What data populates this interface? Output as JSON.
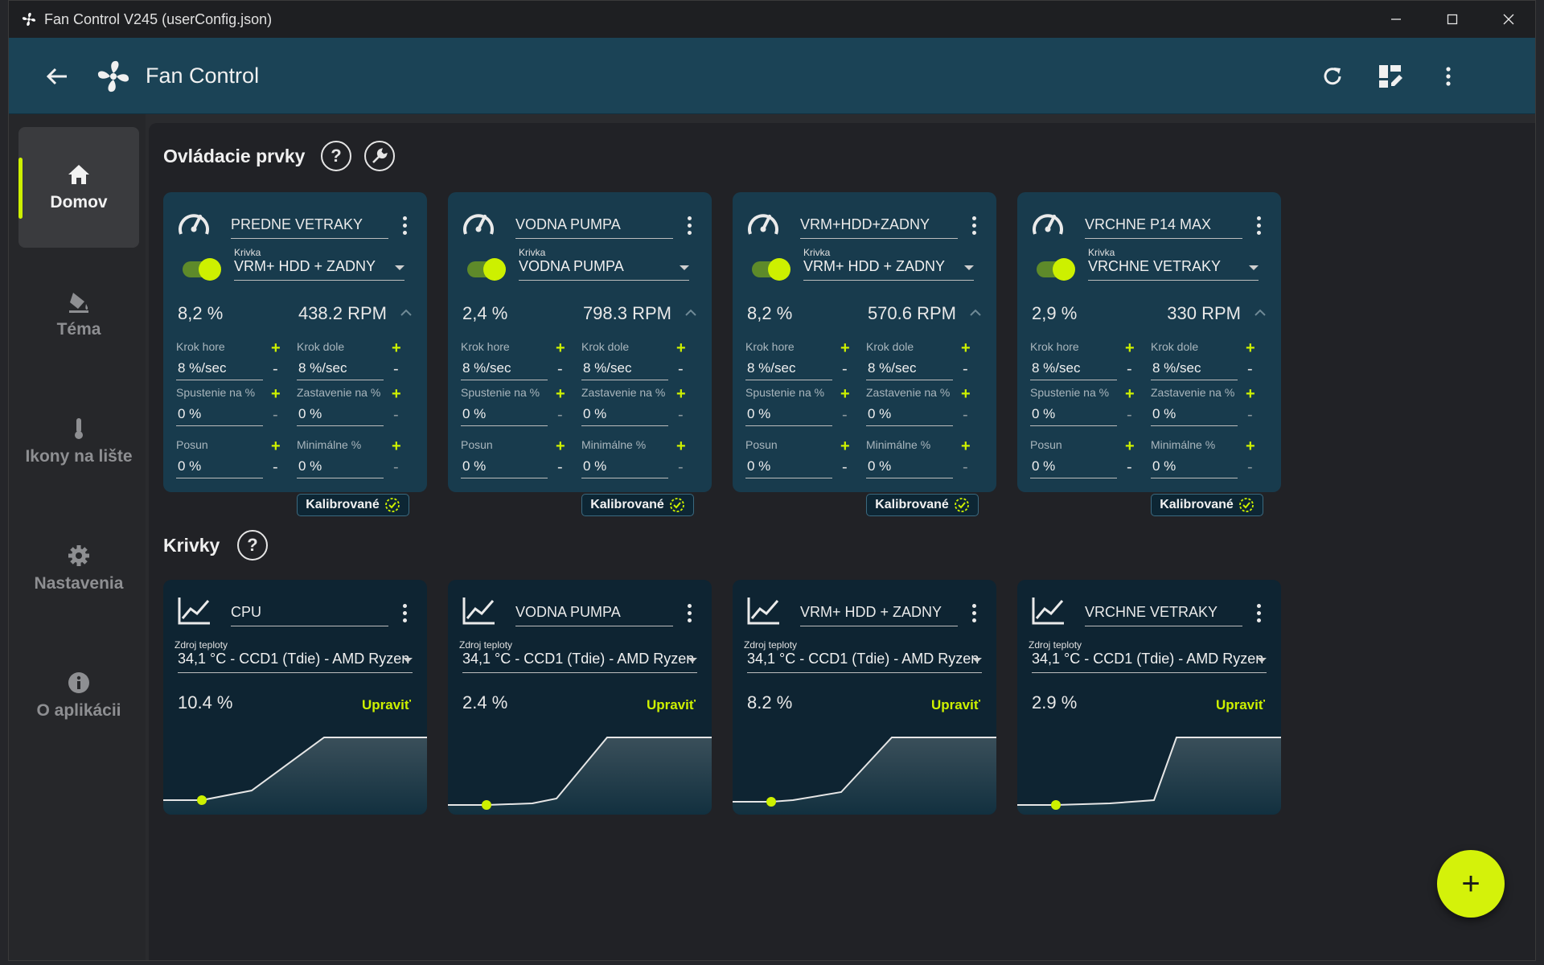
{
  "window": {
    "title": "Fan Control V245 (userConfig.json)"
  },
  "appbar": {
    "title": "Fan Control"
  },
  "sidebar": {
    "items": [
      {
        "label": "Domov",
        "icon": "home-icon"
      },
      {
        "label": "Téma",
        "icon": "paint-bucket-icon"
      },
      {
        "label": "Ikony na lište",
        "icon": "thermometer-icon"
      },
      {
        "label": "Nastavenia",
        "icon": "gear-icon"
      },
      {
        "label": "O aplikácii",
        "icon": "info-icon"
      }
    ]
  },
  "controls_section": {
    "title": "Ovládacie prvky",
    "help": "?"
  },
  "curves_section": {
    "title": "Krivky",
    "help": "?"
  },
  "labels": {
    "curve": "Krivka",
    "step_up": "Krok hore",
    "step_down": "Krok dole",
    "start": "Spustenie na %",
    "stop": "Zastavenie na %",
    "offset": "Posun",
    "minimum": "Minimálne %",
    "calibrated": "Kalibrované",
    "temp_source": "Zdroj teploty",
    "edit": "Upraviť",
    "plus": "+",
    "minus": "-"
  },
  "controls": [
    {
      "name": "PREDNE VETRAKY",
      "curve": "VRM+ HDD + ZADNY",
      "percent": "8,2 %",
      "rpm": "438.2 RPM",
      "step_up": "8 %/sec",
      "step_down": "8 %/sec",
      "start": "0 %",
      "stop": "0 %",
      "offset": "0 %",
      "minimum": "0 %"
    },
    {
      "name": "VODNA PUMPA",
      "curve": "VODNA PUMPA",
      "percent": "2,4 %",
      "rpm": "798.3 RPM",
      "step_up": "8 %/sec",
      "step_down": "8 %/sec",
      "start": "0 %",
      "stop": "0 %",
      "offset": "0 %",
      "minimum": "0 %"
    },
    {
      "name": "VRM+HDD+ZADNY",
      "curve": "VRM+ HDD + ZADNY",
      "percent": "8,2 %",
      "rpm": "570.6 RPM",
      "step_up": "8 %/sec",
      "step_down": "8 %/sec",
      "start": "0 %",
      "stop": "0 %",
      "offset": "0 %",
      "minimum": "0 %"
    },
    {
      "name": "VRCHNE P14 MAX",
      "curve": "VRCHNE VETRAKY",
      "percent": "2,9 %",
      "rpm": "330 RPM",
      "step_up": "8 %/sec",
      "step_down": "8 %/sec",
      "start": "0 %",
      "stop": "0 %",
      "offset": "0 %",
      "minimum": "0 %"
    }
  ],
  "curves": [
    {
      "name": "CPU",
      "source": "34,1 °C - CCD1 (Tdie) - AMD Ryzen",
      "percent": "10.4 %"
    },
    {
      "name": "VODNA PUMPA",
      "source": "34,1 °C - CCD1 (Tdie) - AMD Ryzen",
      "percent": "2.4 %"
    },
    {
      "name": "VRM+ HDD + ZADNY",
      "source": "34,1 °C - CCD1 (Tdie) - AMD Ryzen",
      "percent": "8.2 %"
    },
    {
      "name": "VRCHNE VETRAKY",
      "source": "34,1 °C - CCD1 (Tdie) - AMD Ryzen",
      "percent": "2.9 %"
    }
  ],
  "fab": {
    "label": "+"
  },
  "colors": {
    "accent": "#cdf000",
    "appbar": "#1b4356",
    "card": "#183b4d",
    "curve_card": "#0e2432"
  }
}
